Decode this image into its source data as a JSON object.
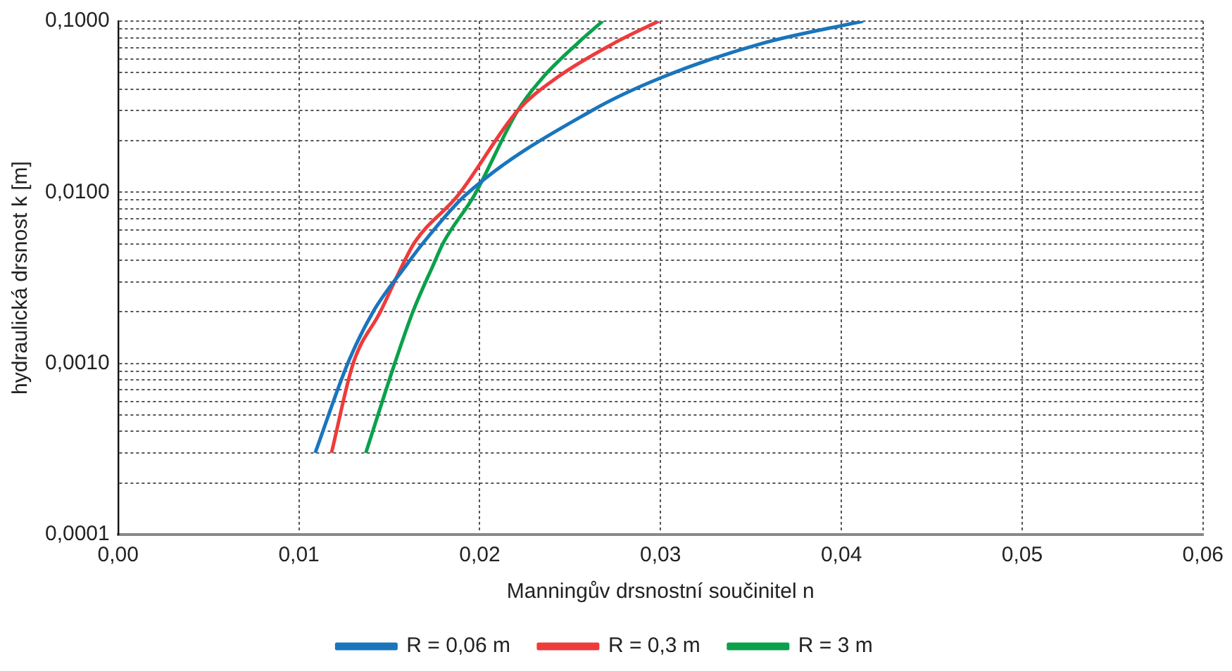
{
  "chart_data": {
    "type": "line",
    "xlabel": "Manningův drsnostní součinitel n",
    "ylabel": "hydraulická drsnost k [m]",
    "series": [
      {
        "name": "R = 0,06 m",
        "color": "#1a75bc",
        "x": [
          0.0109,
          0.0127,
          0.0141,
          0.0159,
          0.0169,
          0.0192,
          0.0262,
          0.0301,
          0.0356,
          0.0412
        ],
        "values": [
          0.0003,
          0.001,
          0.002,
          0.0037,
          0.0051,
          0.0096,
          0.03,
          0.047,
          0.074,
          0.1
        ]
      },
      {
        "name": "R = 0,3 m",
        "color": "#ee3b3b",
        "x": [
          0.0118,
          0.013,
          0.0145,
          0.0157,
          0.0164,
          0.0188,
          0.0221,
          0.0243,
          0.0274,
          0.0299
        ],
        "values": [
          0.0003,
          0.001,
          0.002,
          0.0037,
          0.0051,
          0.0096,
          0.03,
          0.047,
          0.074,
          0.1
        ]
      },
      {
        "name": "R = 3 m",
        "color": "#0aa14b",
        "x": [
          0.0137,
          0.0153,
          0.0163,
          0.0174,
          0.018,
          0.0197,
          0.0221,
          0.0235,
          0.0254,
          0.0268
        ],
        "values": [
          0.0003,
          0.001,
          0.002,
          0.0037,
          0.0051,
          0.0096,
          0.03,
          0.047,
          0.074,
          0.1
        ]
      }
    ],
    "xlim": [
      0,
      0.06
    ],
    "xticks": [
      {
        "value": 0,
        "label": "0,00"
      },
      {
        "value": 0.01,
        "label": "0,01"
      },
      {
        "value": 0.02,
        "label": "0,02"
      },
      {
        "value": 0.03,
        "label": "0,03"
      },
      {
        "value": 0.04,
        "label": "0,04"
      },
      {
        "value": 0.05,
        "label": "0,05"
      },
      {
        "value": 0.06,
        "label": "0,06"
      }
    ],
    "ylim": [
      0.0001,
      0.1
    ],
    "yticks": [
      {
        "value": 0.0001,
        "label": "0,0001"
      },
      {
        "value": 0.0002,
        "label": null
      },
      {
        "value": 0.0003,
        "label": null
      },
      {
        "value": 0.0004,
        "label": null
      },
      {
        "value": 0.0005,
        "label": null
      },
      {
        "value": 0.0006,
        "label": null
      },
      {
        "value": 0.0007,
        "label": null
      },
      {
        "value": 0.0008,
        "label": null
      },
      {
        "value": 0.0009,
        "label": null
      },
      {
        "value": 0.001,
        "label": "0,0010"
      },
      {
        "value": 0.002,
        "label": null
      },
      {
        "value": 0.003,
        "label": null
      },
      {
        "value": 0.004,
        "label": null
      },
      {
        "value": 0.005,
        "label": null
      },
      {
        "value": 0.006,
        "label": null
      },
      {
        "value": 0.007,
        "label": null
      },
      {
        "value": 0.008,
        "label": null
      },
      {
        "value": 0.009,
        "label": null
      },
      {
        "value": 0.01,
        "label": "0,0100"
      },
      {
        "value": 0.02,
        "label": null
      },
      {
        "value": 0.03,
        "label": null
      },
      {
        "value": 0.04,
        "label": null
      },
      {
        "value": 0.05,
        "label": null
      },
      {
        "value": 0.06,
        "label": null
      },
      {
        "value": 0.07,
        "label": null
      },
      {
        "value": 0.08,
        "label": null
      },
      {
        "value": 0.09,
        "label": null
      },
      {
        "value": 0.1,
        "label": "0,1000"
      }
    ],
    "log": "y",
    "grid": true,
    "legend": "bottom",
    "marker": "none",
    "line_style": "solid"
  }
}
